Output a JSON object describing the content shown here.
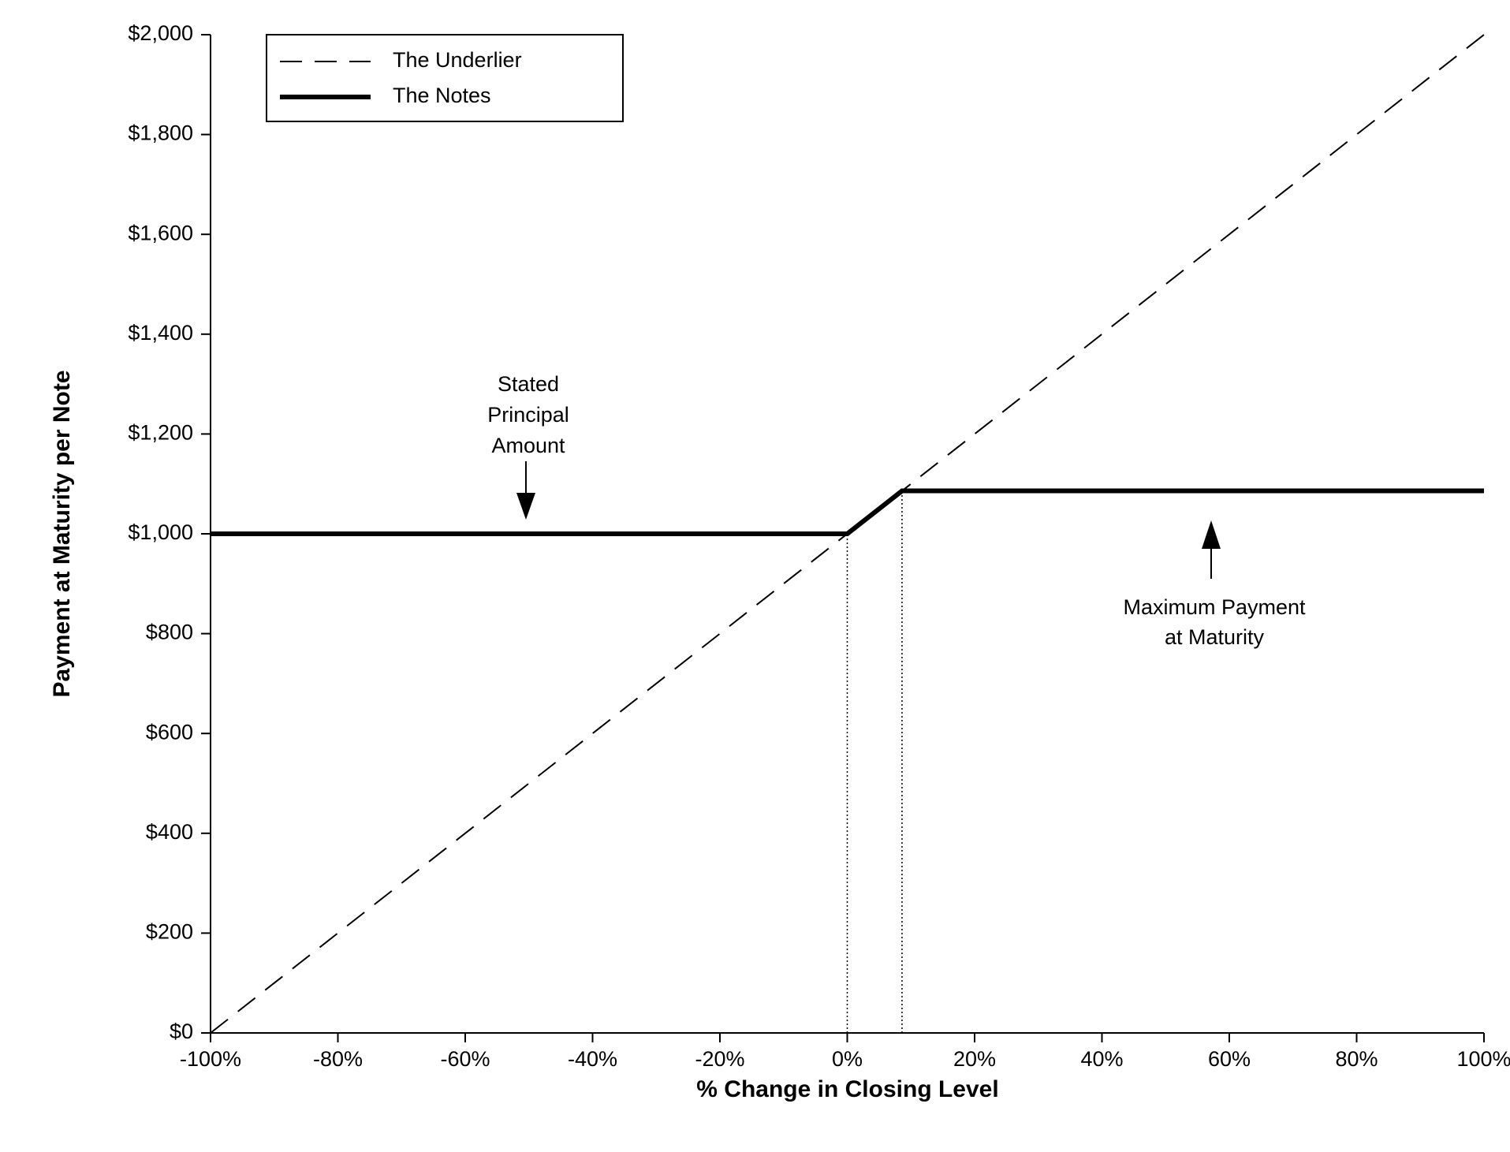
{
  "chart_data": {
    "type": "line",
    "xlabel": "% Change in Closing Level",
    "ylabel": "Payment at Maturity per Note",
    "xlim": [
      -100,
      100
    ],
    "ylim": [
      0,
      2000
    ],
    "xticks": [
      {
        "value": -100,
        "label": "-100%"
      },
      {
        "value": -80,
        "label": "-80%"
      },
      {
        "value": -60,
        "label": "-60%"
      },
      {
        "value": -40,
        "label": "-40%"
      },
      {
        "value": -20,
        "label": "-20%"
      },
      {
        "value": 0,
        "label": "0%"
      },
      {
        "value": 20,
        "label": "20%"
      },
      {
        "value": 40,
        "label": "40%"
      },
      {
        "value": 60,
        "label": "60%"
      },
      {
        "value": 80,
        "label": "80%"
      },
      {
        "value": 100,
        "label": "100%"
      }
    ],
    "yticks": [
      {
        "value": 0,
        "label": "$0"
      },
      {
        "value": 200,
        "label": "$200"
      },
      {
        "value": 400,
        "label": "$400"
      },
      {
        "value": 600,
        "label": "$600"
      },
      {
        "value": 800,
        "label": "$800"
      },
      {
        "value": 1000,
        "label": "$1,000"
      },
      {
        "value": 1200,
        "label": "$1,200"
      },
      {
        "value": 1400,
        "label": "$1,400"
      },
      {
        "value": 1600,
        "label": "$1,600"
      },
      {
        "value": 1800,
        "label": "$1,800"
      },
      {
        "value": 2000,
        "label": "$2,000"
      }
    ],
    "series": [
      {
        "name": "The Underlier",
        "color": "#000000",
        "style": "dashed",
        "x": [
          -100,
          100
        ],
        "values": [
          0,
          2000
        ]
      },
      {
        "name": "The Notes",
        "color": "#000000",
        "style": "solid",
        "x": [
          -100,
          0,
          8.6,
          100
        ],
        "values": [
          1000,
          1000,
          1086,
          1086
        ]
      }
    ],
    "annotations": [
      {
        "lines": [
          "Stated",
          "Principal",
          "Amount"
        ]
      },
      {
        "lines": [
          "Maximum Payment",
          "at Maturity"
        ]
      }
    ]
  }
}
